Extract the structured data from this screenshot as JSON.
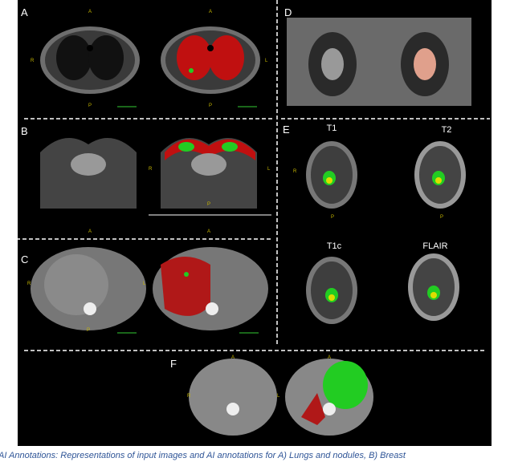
{
  "panels": [
    "A",
    "B",
    "C",
    "D",
    "E",
    "F"
  ],
  "orientation": {
    "anterior": "A",
    "posterior": "P",
    "right": "R",
    "left": "L"
  },
  "sequences": [
    "T1",
    "T2",
    "T1c",
    "FLAIR"
  ],
  "caption": "AI Annotations: Representations of input images and AI annotations for A) Lungs and nodules, B) Breast"
}
